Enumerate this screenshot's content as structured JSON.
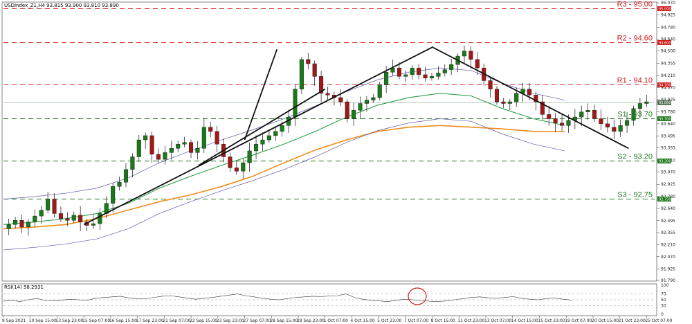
{
  "header": {
    "symbol_info": "USDIndex_Z1,H4  93.815 93.900 93.810 93.890"
  },
  "chart_data": {
    "type": "candlestick",
    "title": "USDIndex_Z1,H4",
    "ohlc_last": {
      "open": 93.815,
      "high": 93.9,
      "low": 93.81,
      "close": 93.89
    },
    "y_range": [
      91.79,
      95.07
    ],
    "y_ticks": [
      "95.070",
      "94.925",
      "94.780",
      "94.640",
      "94.500",
      "94.355",
      "94.210",
      "94.070",
      "93.925",
      "93.780",
      "93.640",
      "93.495",
      "93.355",
      "93.210",
      "93.070",
      "92.925",
      "92.780",
      "92.640",
      "92.495",
      "92.355",
      "92.210",
      "92.070",
      "91.925",
      "91.790"
    ],
    "x_ticks": [
      "9 Sep 2021",
      "10 Sep 15:00",
      "13 Sep 23:00",
      "15 Sep 07:00",
      "16 Sep 15:00",
      "17 Sep 23:00",
      "21 Sep 07:00",
      "22 Sep 15:00",
      "23 Sep 23:00",
      "27 Sep 07:00",
      "28 Sep 15:00",
      "29 Sep 23:00",
      "1 Oct 07:00",
      "4 Oct 15:00",
      "5 Oct 23:00",
      "7 Oct 07:00",
      "8 Oct 15:00",
      "11 Oct 23:00",
      "13 Oct 07:00",
      "14 Oct 15:00",
      "15 Oct 23:00",
      "19 Oct 07:00",
      "20 Oct 15:00",
      "21 Oct 23:00",
      "25 Oct 07:00"
    ],
    "levels": [
      {
        "label": "R3 - 95.00",
        "value": 95.0,
        "type": "resistance",
        "color": "#d01c1c",
        "badge": "95.000"
      },
      {
        "label": "R2 - 94.60",
        "value": 94.6,
        "type": "resistance",
        "color": "#d01c1c",
        "badge": "94.600"
      },
      {
        "label": "R1 - 94.10",
        "value": 94.1,
        "type": "resistance",
        "color": "#d01c1c",
        "badge": "94.100"
      },
      {
        "label": "S1 - 93.70",
        "value": 93.7,
        "type": "support",
        "color": "#1e7a1e",
        "badge": "93.700"
      },
      {
        "label": "S2 - 93.20",
        "value": 93.2,
        "type": "support",
        "color": "#1e7a1e",
        "badge": "93.200"
      },
      {
        "label": "S3 - 92.75",
        "value": 92.75,
        "type": "support",
        "color": "#1e7a1e",
        "badge": "92.750"
      }
    ],
    "current_price": {
      "value": 93.89,
      "badge": "93.890"
    },
    "close_series": [
      92.45,
      92.5,
      92.42,
      92.48,
      92.55,
      92.62,
      92.75,
      92.58,
      92.52,
      92.5,
      92.56,
      92.48,
      92.44,
      92.46,
      92.58,
      92.7,
      92.9,
      92.95,
      93.1,
      93.25,
      93.45,
      93.5,
      93.28,
      93.22,
      93.3,
      93.35,
      93.4,
      93.42,
      93.3,
      93.35,
      93.6,
      93.55,
      93.4,
      93.25,
      93.12,
      93.08,
      93.18,
      93.32,
      93.4,
      93.45,
      93.5,
      93.55,
      93.62,
      93.72,
      94.05,
      94.4,
      94.35,
      94.2,
      94.0,
      93.98,
      93.95,
      93.9,
      93.7,
      93.8,
      93.88,
      93.92,
      93.95,
      94.1,
      94.25,
      94.3,
      94.2,
      94.22,
      94.3,
      94.22,
      94.18,
      94.2,
      94.24,
      94.28,
      94.34,
      94.44,
      94.5,
      94.4,
      94.3,
      94.15,
      94.05,
      93.9,
      93.88,
      93.9,
      94.0,
      94.05,
      93.98,
      93.9,
      93.75,
      93.7,
      93.65,
      93.62,
      93.68,
      93.72,
      93.78,
      93.8,
      93.7,
      93.64,
      93.6,
      93.55,
      93.62,
      93.68,
      93.82,
      93.88,
      93.9
    ],
    "trendlines": [
      {
        "from": {
          "x": "15 Sep 07:00",
          "y": 92.45
        },
        "to": {
          "x": "12 Oct 23:00",
          "y": 94.55
        }
      },
      {
        "from": {
          "x": "12 Oct 11:00",
          "y": 94.54
        },
        "to": {
          "x": "27 Oct 23:00",
          "y": 93.35
        }
      },
      {
        "from": {
          "x": "24 Sep 07:00",
          "y": 93.15
        },
        "to": {
          "x": "1 Oct 07:00",
          "y": 94.05
        }
      },
      {
        "from": {
          "x": "27 Sep 07:00",
          "y": 93.45
        },
        "to": {
          "x": "30 Sep 07:00",
          "y": 94.52
        }
      }
    ],
    "indicators": {
      "ma_green": [
        92.45,
        92.48,
        92.52,
        92.58,
        92.7,
        92.88,
        93.02,
        93.15,
        93.27,
        93.4,
        93.55,
        93.72,
        93.86,
        93.95,
        94.0,
        93.97,
        93.82,
        93.7,
        93.62
      ],
      "ma_orange": [
        92.4,
        92.42,
        92.45,
        92.52,
        92.62,
        92.72,
        92.8,
        92.9,
        93.02,
        93.18,
        93.33,
        93.45,
        93.55,
        93.6,
        93.62,
        93.6,
        93.58,
        93.55,
        93.55
      ]
    },
    "rsi": {
      "label": "RSI(14) 58.2931",
      "period": 14,
      "value": 58.2931,
      "levels": [
        30,
        50,
        70
      ],
      "y_ticks": [
        "100",
        "70",
        "50",
        "30",
        "0"
      ],
      "series": [
        45,
        48,
        44,
        50,
        55,
        47,
        46,
        49,
        52,
        50,
        48,
        55,
        58,
        60,
        62,
        56,
        54,
        53,
        58,
        62,
        64,
        60,
        56,
        52,
        55,
        58,
        62,
        66,
        70,
        64,
        60,
        55,
        52,
        50,
        54,
        58,
        60,
        62,
        61,
        63,
        64,
        70,
        58,
        52,
        48,
        46,
        44,
        48,
        52,
        50,
        47,
        45,
        44,
        46,
        50,
        54,
        58,
        60,
        57,
        55,
        58,
        61,
        55,
        52,
        50,
        54,
        56,
        52,
        49
      ]
    }
  }
}
